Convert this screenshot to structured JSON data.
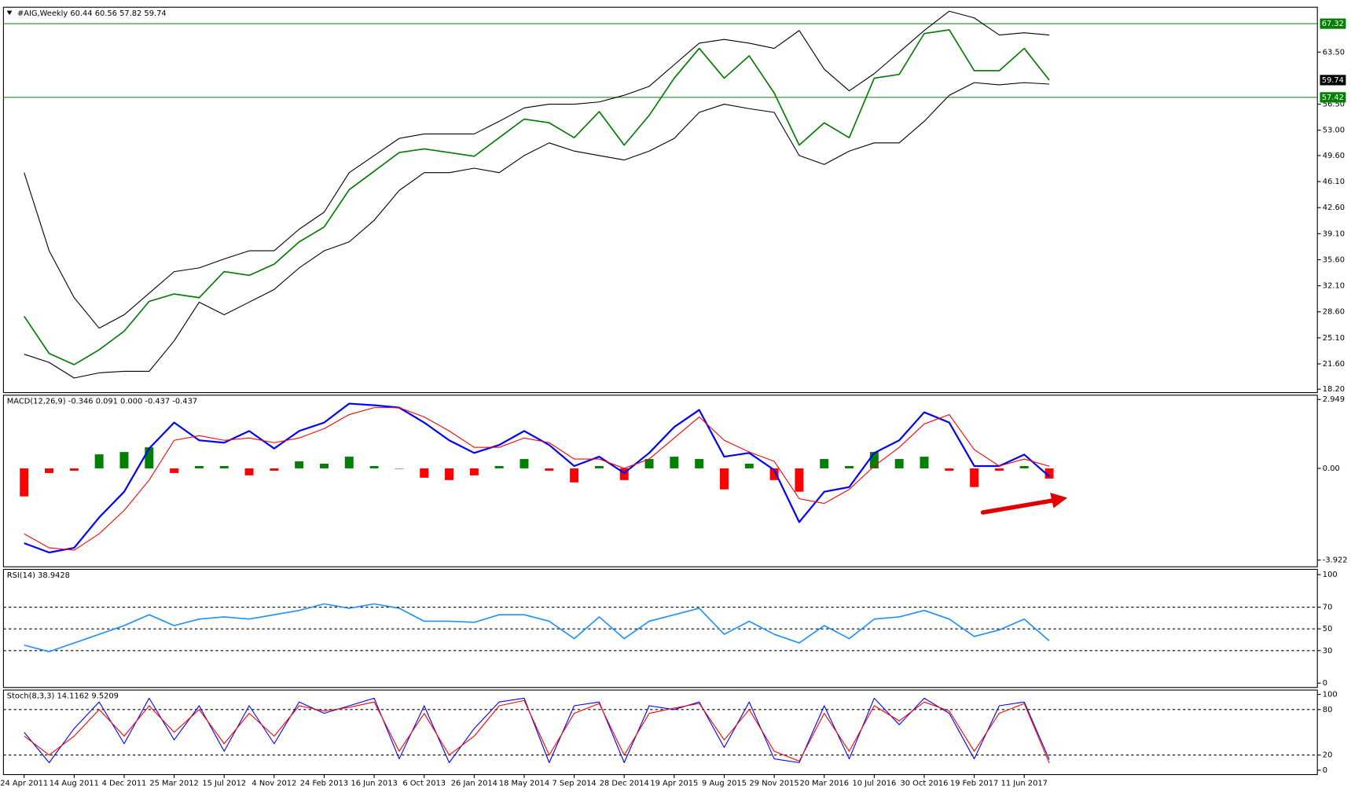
{
  "chart_data": [
    {
      "type": "line",
      "title": "#AIG,Weekly  60.44 60.56 57.82 59.74",
      "categories": [
        "24 Apr 2011",
        null,
        "14 Aug 2011",
        null,
        "4 Dec 2011",
        null,
        "25 Mar 2012",
        null,
        "15 Jul 2012",
        null,
        "4 Nov 2012",
        null,
        "24 Feb 2013",
        null,
        "16 Jun 2013",
        null,
        "6 Oct 2013",
        null,
        "26 Jan 2014",
        null,
        "18 May 2014",
        null,
        "7 Sep 2014",
        null,
        "28 Dec 2014",
        null,
        "19 Apr 2015",
        null,
        "9 Aug 2015",
        null,
        "29 Nov 2015",
        null,
        "20 Mar 2016",
        null,
        "10 Jul 2016",
        null,
        "30 Oct 2016",
        null,
        "19 Feb 2017",
        null,
        "11 Jun 2017",
        null
      ],
      "series": [
        {
          "type": "line",
          "color": "#007a00",
          "width": 1.5,
          "values": [
            28,
            23,
            21.5,
            23.5,
            26,
            30,
            31,
            30.5,
            34,
            33.5,
            35,
            38,
            40,
            45,
            47.5,
            50,
            50.5,
            50,
            49.5,
            52,
            54.5,
            54,
            52,
            55.5,
            51,
            55,
            60,
            64,
            60,
            63,
            58,
            51,
            54,
            52,
            60,
            60.5,
            66,
            66.5,
            61,
            61,
            64,
            59.74
          ]
        },
        {
          "type": "line",
          "color": "#000000",
          "width": 1,
          "values": [
            47.3,
            36.8,
            30.5,
            26.4,
            28.2,
            31.1,
            34,
            34.5,
            35.7,
            36.8,
            36.8,
            39.7,
            42,
            47.3,
            49.6,
            51.9,
            52.5,
            52.5,
            52.5,
            54.2,
            56,
            56.5,
            56.5,
            56.8,
            57.7,
            58.9,
            61.8,
            64.7,
            65.2,
            64.7,
            64,
            66.4,
            61.2,
            58.3,
            60.6,
            63.5,
            66.4,
            69,
            68.1,
            65.8,
            66.1,
            65.8
          ]
        },
        {
          "type": "line",
          "color": "#000000",
          "width": 1,
          "values": [
            22.9,
            21.8,
            19.7,
            20.4,
            20.6,
            20.6,
            24.7,
            29.9,
            28.2,
            29.9,
            31.6,
            34.5,
            36.8,
            38,
            40.9,
            44.9,
            47.3,
            47.3,
            47.9,
            47.3,
            49.6,
            51.3,
            50.2,
            49.6,
            49,
            50.2,
            51.9,
            55.4,
            56.5,
            55.9,
            55.4,
            49.6,
            48.4,
            50.2,
            51.3,
            51.3,
            54.2,
            57.7,
            59.4,
            59.1,
            59.4,
            59.2
          ]
        }
      ],
      "ylim": [
        17.74,
        69.53
      ],
      "yticks": [
        {
          "value": 63.5,
          "label": "63.50"
        },
        {
          "value": 56.5,
          "label": "56.50"
        },
        {
          "value": 53,
          "label": "53.00"
        },
        {
          "value": 49.6,
          "label": "49.60"
        },
        {
          "value": 46.1,
          "label": "46.10"
        },
        {
          "value": 42.6,
          "label": "42.60"
        },
        {
          "value": 39.1,
          "label": "39.10"
        },
        {
          "value": 35.6,
          "label": "35.60"
        },
        {
          "value": 32.1,
          "label": "32.10"
        },
        {
          "value": 28.6,
          "label": "28.60"
        },
        {
          "value": 25.1,
          "label": "25.10"
        },
        {
          "value": 21.6,
          "label": "21.60"
        },
        {
          "value": 18.2,
          "label": "18.20"
        }
      ],
      "levels": [
        67.32,
        57.42
      ],
      "level_color": "#008000",
      "level_labels": true,
      "last_label": true
    },
    {
      "type": "line",
      "title": "MACD(12,26,9) -0.346 0.091 0.000 -0.437 -0.437",
      "series": [
        {
          "type": "bar",
          "color": "#008000",
          "negative_color": "#ff0000",
          "values": [
            -1.2,
            -0.2,
            -0.1,
            0.6,
            0.7,
            0.9,
            -0.2,
            0.1,
            0.1,
            -0.3,
            -0.1,
            0.3,
            0.2,
            0.5,
            0.1,
            0,
            -0.4,
            -0.5,
            -0.3,
            0.1,
            0.4,
            -0.1,
            -0.6,
            0.1,
            -0.5,
            0.4,
            0.5,
            0.4,
            -0.9,
            0.2,
            -0.5,
            -1,
            0.4,
            0.1,
            0.7,
            0.4,
            0.5,
            -0.1,
            -0.8,
            -0.1,
            0.1,
            -0.437
          ]
        },
        {
          "type": "line",
          "color": "#0000ff",
          "width": 2,
          "values": [
            -3.2,
            -3.6,
            -3.4,
            -2.1,
            -1,
            0.85,
            1.96,
            1.2,
            1.1,
            1.6,
            0.85,
            1.6,
            1.96,
            2.77,
            2.7,
            2.6,
            1.96,
            1.2,
            0.66,
            1,
            1.6,
            1,
            0.1,
            0.5,
            -0.2,
            0.66,
            1.77,
            2.5,
            0.5,
            0.66,
            -0.07,
            -2.3,
            -1,
            -0.8,
            0.66,
            1.2,
            2.4,
            1.96,
            0.1,
            0.1,
            0.59,
            -0.346
          ]
        },
        {
          "type": "line",
          "color": "#ff0000",
          "width": 1,
          "values": [
            -2.8,
            -3.4,
            -3.5,
            -2.8,
            -1.8,
            -0.5,
            1.2,
            1.4,
            1.2,
            1.3,
            1.1,
            1.3,
            1.7,
            2.3,
            2.6,
            2.6,
            2.2,
            1.6,
            0.9,
            0.9,
            1.3,
            1.1,
            0.4,
            0.4,
            0,
            0.4,
            1.3,
            2.2,
            1.2,
            0.7,
            0.3,
            -1.3,
            -1.5,
            -0.9,
            0.1,
            0.9,
            1.9,
            2.3,
            0.8,
            0.1,
            0.4,
            0.091
          ]
        }
      ],
      "ylim": [
        -4.21,
        3.13
      ],
      "yticks": [
        2.949,
        {
          "value": 0,
          "label": "0.00"
        },
        -3.922
      ]
    },
    {
      "type": "line",
      "title": "RSI(14) 38.9428",
      "series": [
        {
          "type": "line",
          "color": "#1e90ff",
          "width": 1.5,
          "values": [
            35,
            29,
            37,
            45,
            53,
            63,
            53,
            59,
            61,
            59,
            63,
            67,
            73,
            69,
            73,
            69,
            57,
            57,
            56,
            63,
            63,
            57,
            41,
            61,
            41,
            57,
            63,
            69,
            45,
            57,
            45,
            37,
            53,
            41,
            59,
            61,
            67,
            59,
            43,
            49,
            59,
            38.9428
          ]
        }
      ],
      "ylim": [
        -4,
        104.8
      ],
      "yticks": [
        100,
        70,
        50,
        30,
        0
      ],
      "levels": [
        70,
        50,
        30
      ],
      "level_color": "#000000"
    },
    {
      "type": "line",
      "title": "Stoch(8,3,3) 14.1162 9.5209",
      "series": [
        {
          "type": "line",
          "color": "#0000ff",
          "width": 1,
          "values": [
            50,
            10,
            55,
            90,
            35,
            95,
            40,
            85,
            25,
            85,
            35,
            90,
            75,
            85,
            95,
            15,
            85,
            10,
            55,
            90,
            95,
            10,
            85,
            90,
            10,
            85,
            80,
            90,
            30,
            90,
            15,
            10,
            85,
            15,
            95,
            60,
            95,
            75,
            15,
            85,
            90,
            14.1162
          ]
        },
        {
          "type": "line",
          "color": "#ff0000",
          "width": 1,
          "values": [
            45,
            20,
            45,
            80,
            45,
            85,
            50,
            80,
            35,
            75,
            45,
            85,
            78,
            83,
            90,
            25,
            75,
            20,
            45,
            85,
            92,
            20,
            75,
            88,
            20,
            75,
            82,
            88,
            40,
            80,
            25,
            12,
            75,
            25,
            85,
            65,
            90,
            78,
            25,
            75,
            88,
            9.5209
          ]
        }
      ],
      "ylim": [
        -5.7,
        105.7
      ],
      "yticks": [
        100,
        80,
        20,
        0
      ],
      "levels": [
        80,
        20
      ],
      "level_color": "#000000"
    }
  ]
}
